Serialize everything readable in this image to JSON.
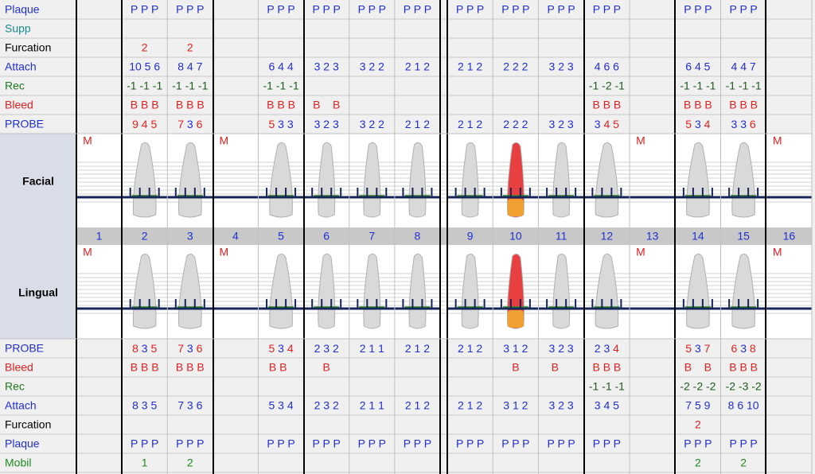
{
  "top_rows": [
    {
      "label": "Plaque",
      "label_color": "#1f2fd0",
      "value_color": "#1f2fd0",
      "cells": [
        null,
        "P P P",
        "P P P",
        null,
        "P P P",
        "P P P",
        "P P P",
        "P P P",
        "P P P",
        "P P P",
        "P P P",
        "P P P",
        null,
        "P P P",
        "P P P",
        null
      ]
    },
    {
      "label": "Supp",
      "label_color": "#1a8a8a",
      "value_color": "#1a8a8a",
      "cells": [
        null,
        null,
        null,
        null,
        null,
        null,
        null,
        null,
        null,
        null,
        null,
        null,
        null,
        null,
        null,
        null
      ]
    },
    {
      "label": "Furcation",
      "label_color": "#000000",
      "value_color": "#e02020",
      "cells": [
        null,
        "2",
        "2",
        null,
        null,
        null,
        null,
        null,
        null,
        null,
        null,
        null,
        null,
        null,
        null,
        null
      ]
    },
    {
      "label": "Attach",
      "label_color": "#1f2fd0",
      "value_color": "#1f2fd0",
      "cells": [
        null,
        "10 5 6",
        "8 4 7",
        null,
        "6 4 4",
        "3 2 3",
        "3 2 2",
        "2 1 2",
        "2 1 2",
        "2 2 2",
        "3 2 3",
        "4 6 6",
        null,
        "6 4 5",
        "4 4 7",
        null
      ]
    },
    {
      "label": "Rec",
      "label_color": "#1d7a1d",
      "value_color": "#1d5a1d",
      "cells": [
        null,
        "-1 -1 -1",
        "-1 -1 -1",
        null,
        "-1 -1 -1",
        null,
        null,
        null,
        null,
        null,
        null,
        "-1 -2 -1",
        null,
        "-1 -1 -1",
        "-1 -1 -1",
        null
      ]
    },
    {
      "label": "Bleed",
      "label_color": "#e02020",
      "value_color": "#e02020",
      "cells": [
        null,
        "B B B",
        "B B B",
        null,
        "B B B",
        "B    B",
        null,
        null,
        null,
        null,
        null,
        "B B B",
        null,
        "B B B",
        "B B B",
        null
      ]
    },
    {
      "label": "PROBE",
      "label_color": "#1f2fd0",
      "value_color": "probe",
      "cells": [
        null,
        "9 4 5",
        "7 3 6",
        null,
        "5 3 3",
        "3 2 3",
        "3 2 2",
        "2 1 2",
        "2 1 2",
        "2 2 2",
        "3 2 3",
        "3 4 5",
        null,
        "5 3 4",
        "3 3 6",
        null
      ]
    }
  ],
  "facial_label": "Facial",
  "lingual_label": "Lingual",
  "teeth": [
    {
      "number": 1,
      "mark": "M"
    },
    {
      "number": 2
    },
    {
      "number": 3
    },
    {
      "number": 4,
      "mark": "M"
    },
    {
      "number": 5
    },
    {
      "number": 6
    },
    {
      "number": 7
    },
    {
      "number": 8
    },
    {
      "number": 9
    },
    {
      "number": 10
    },
    {
      "number": 11
    },
    {
      "number": 12
    },
    {
      "number": 13,
      "mark": "M"
    },
    {
      "number": 14
    },
    {
      "number": 15
    },
    {
      "number": 16,
      "mark": "M"
    }
  ],
  "bottom_rows": [
    {
      "label": "PROBE",
      "label_color": "#1f2fd0",
      "value_color": "probe",
      "cells": [
        null,
        "8 3 5",
        "7 3 6",
        null,
        "5 3 4",
        "2 3 2",
        "2 1 1",
        "2 1 2",
        "2 1 2",
        "3 1 2",
        "3 2 3",
        "2 3 4",
        null,
        "5 3 7",
        "6 3 8",
        null
      ]
    },
    {
      "label": "Bleed",
      "label_color": "#e02020",
      "value_color": "#e02020",
      "cells": [
        null,
        "B B B",
        "B B B",
        null,
        "B B  ",
        "  B  ",
        null,
        null,
        null,
        "  B  ",
        "B    ",
        "B B B",
        null,
        "B    B",
        "B B B",
        null
      ]
    },
    {
      "label": "Rec",
      "label_color": "#1d7a1d",
      "value_color": "#1d5a1d",
      "cells": [
        null,
        null,
        null,
        null,
        null,
        null,
        null,
        null,
        null,
        null,
        null,
        "-1 -1 -1",
        null,
        "-2 -2 -2",
        "-2 -3 -2",
        null
      ]
    },
    {
      "label": "Attach",
      "label_color": "#1f2fd0",
      "value_color": "#1f2fd0",
      "cells": [
        null,
        "8 3 5",
        "7 3 6",
        null,
        "5 3 4",
        "2 3 2",
        "2 1 1",
        "2 1 2",
        "2 1 2",
        "3 1 2",
        "3 2 3",
        "3 4 5",
        null,
        "7 5 9",
        "8 6 10",
        null
      ]
    },
    {
      "label": "Furcation",
      "label_color": "#000000",
      "value_color": "#e02020",
      "cells": [
        null,
        null,
        null,
        null,
        null,
        null,
        null,
        null,
        null,
        null,
        null,
        null,
        null,
        "2",
        null,
        null
      ]
    },
    {
      "label": "Plaque",
      "label_color": "#1f2fd0",
      "value_color": "#1f2fd0",
      "cells": [
        null,
        "P P P",
        "P P P",
        null,
        "P P P",
        "P P P",
        "P P P",
        "P P P",
        "P P P",
        "P P P",
        "P P P",
        "P P P",
        null,
        "P P P",
        "P P P",
        null
      ]
    },
    {
      "label": "Mobil",
      "label_color": "#1d8a1d",
      "value_color": "#1d8a1d",
      "cells": [
        null,
        "1",
        "2",
        null,
        null,
        null,
        null,
        null,
        null,
        null,
        null,
        null,
        null,
        "2",
        "2",
        null
      ]
    }
  ]
}
